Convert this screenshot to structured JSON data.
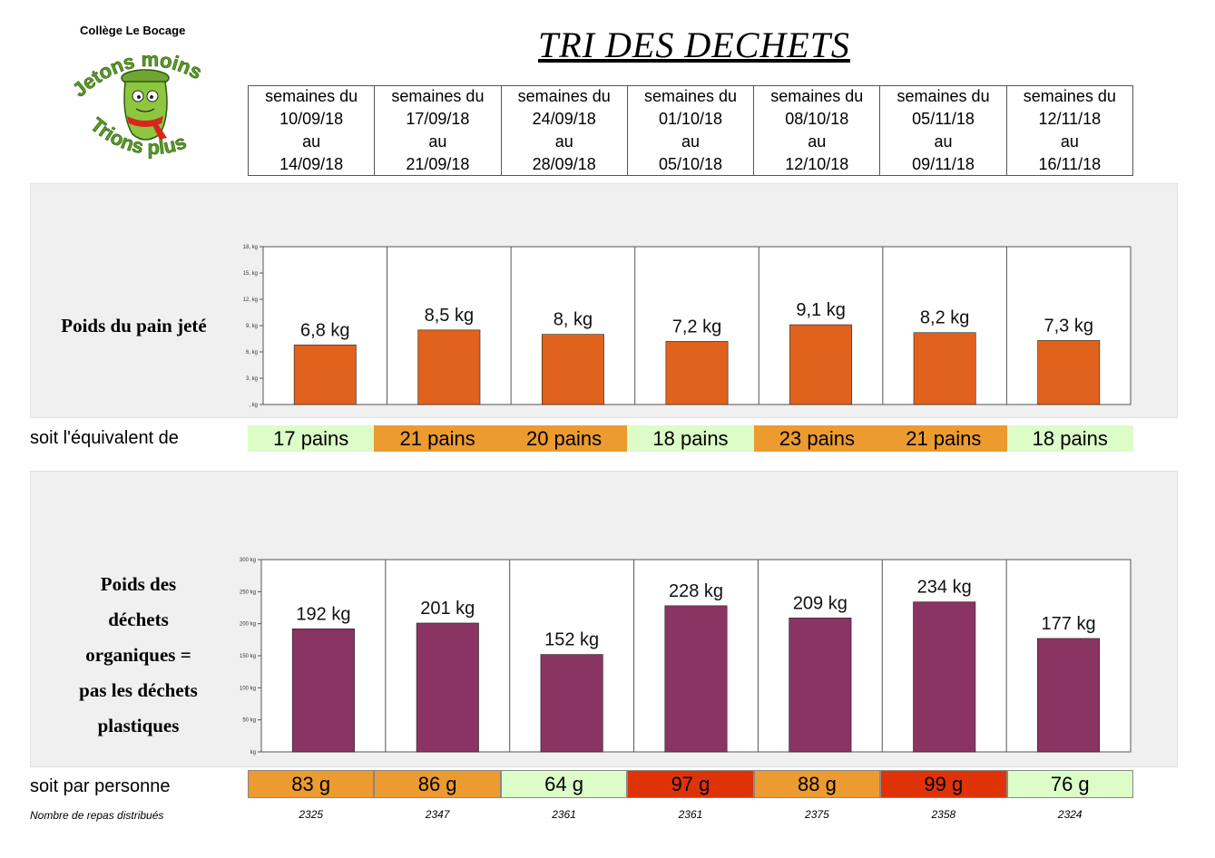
{
  "header": {
    "school": "Collège Le Bocage",
    "logo_text": [
      "Jetons moins",
      "Trions plus"
    ],
    "title": "TRI DES DECHETS"
  },
  "weeks": [
    {
      "l1": "semaines du",
      "from": "10/09/18",
      "au": "au",
      "to": "14/09/18"
    },
    {
      "l1": "semaines du",
      "from": "17/09/18",
      "au": "au",
      "to": "21/09/18"
    },
    {
      "l1": "semaines du",
      "from": "24/09/18",
      "au": "au",
      "to": "28/09/18"
    },
    {
      "l1": "semaines du",
      "from": "01/10/18",
      "au": "au",
      "to": "05/10/18"
    },
    {
      "l1": "semaines du",
      "from": "08/10/18",
      "au": "au",
      "to": "12/10/18"
    },
    {
      "l1": "semaines du",
      "from": "05/11/18",
      "au": "au",
      "to": "09/11/18"
    },
    {
      "l1": "semaines du",
      "from": "12/11/18",
      "au": "au",
      "to": "16/11/18"
    }
  ],
  "colors": {
    "bread_bar": "#e0621c",
    "organic_bar": "#8a3463",
    "light_green": "#dcfcc8",
    "orange": "#ec9b30",
    "red": "#df3307"
  },
  "bread": {
    "label": "Poids du pain jeté",
    "equiv_label": "soit l'équivalent de",
    "equiv": [
      {
        "text": "17 pains",
        "color": "#dcfcc8"
      },
      {
        "text": "21 pains",
        "color": "#ec9b30"
      },
      {
        "text": "20 pains",
        "color": "#ec9b30"
      },
      {
        "text": "18 pains",
        "color": "#dcfcc8"
      },
      {
        "text": "23 pains",
        "color": "#ec9b30"
      },
      {
        "text": "21 pains",
        "color": "#ec9b30"
      },
      {
        "text": "18 pains",
        "color": "#dcfcc8"
      }
    ]
  },
  "organic": {
    "label_lines": [
      "Poids des",
      "déchets",
      "organiques =",
      "pas les déchets",
      "plastiques"
    ],
    "per_person_label": "soit par personne",
    "per_person": [
      {
        "text": "83 g",
        "color": "#ec9b30"
      },
      {
        "text": "86 g",
        "color": "#ec9b30"
      },
      {
        "text": "64 g",
        "color": "#dcfcc8"
      },
      {
        "text": "97 g",
        "color": "#df3307"
      },
      {
        "text": "88 g",
        "color": "#ec9b30"
      },
      {
        "text": "99 g",
        "color": "#df3307"
      },
      {
        "text": "76 g",
        "color": "#dcfcc8"
      }
    ],
    "meals_label": "Nombre de repas distribués",
    "meals": [
      "2325",
      "2347",
      "2361",
      "2361",
      "2375",
      "2358",
      "2324"
    ]
  },
  "chart_data": [
    {
      "type": "bar",
      "title": "Poids du pain jeté",
      "categories": [
        "10/09/18-14/09/18",
        "17/09/18-21/09/18",
        "24/09/18-28/09/18",
        "01/10/18-05/10/18",
        "08/10/18-12/10/18",
        "05/11/18-09/11/18",
        "12/11/18-16/11/18"
      ],
      "values": [
        6.8,
        8.5,
        8.0,
        7.2,
        9.1,
        8.2,
        7.3
      ],
      "data_labels": [
        "6,8 kg",
        "8,5 kg",
        "8, kg",
        "7,2 kg",
        "9,1 kg",
        "8,2 kg",
        "7,3 kg"
      ],
      "yticks": [
        0,
        3,
        6,
        9,
        12,
        15,
        18
      ],
      "ytick_labels": [
        ", kg",
        "3, kg",
        "6, kg",
        "9, kg",
        "12, kg",
        "15, kg",
        "18, kg"
      ],
      "ylim": [
        0,
        18
      ],
      "ylabel": "kg"
    },
    {
      "type": "bar",
      "title": "Poids des déchets organiques",
      "categories": [
        "10/09/18-14/09/18",
        "17/09/18-21/09/18",
        "24/09/18-28/09/18",
        "01/10/18-05/10/18",
        "08/10/18-12/10/18",
        "05/11/18-09/11/18",
        "12/11/18-16/11/18"
      ],
      "values": [
        192,
        201,
        152,
        228,
        209,
        234,
        177
      ],
      "data_labels": [
        "192 kg",
        "201 kg",
        "152 kg",
        "228 kg",
        "209 kg",
        "234 kg",
        "177 kg"
      ],
      "yticks": [
        0,
        50,
        100,
        150,
        200,
        250,
        300
      ],
      "ytick_labels": [
        "kg",
        "50 kg",
        "100 kg",
        "150 kg",
        "200 kg",
        "250 kg",
        "300 kg"
      ],
      "ylim": [
        0,
        300
      ],
      "ylabel": "kg"
    }
  ]
}
